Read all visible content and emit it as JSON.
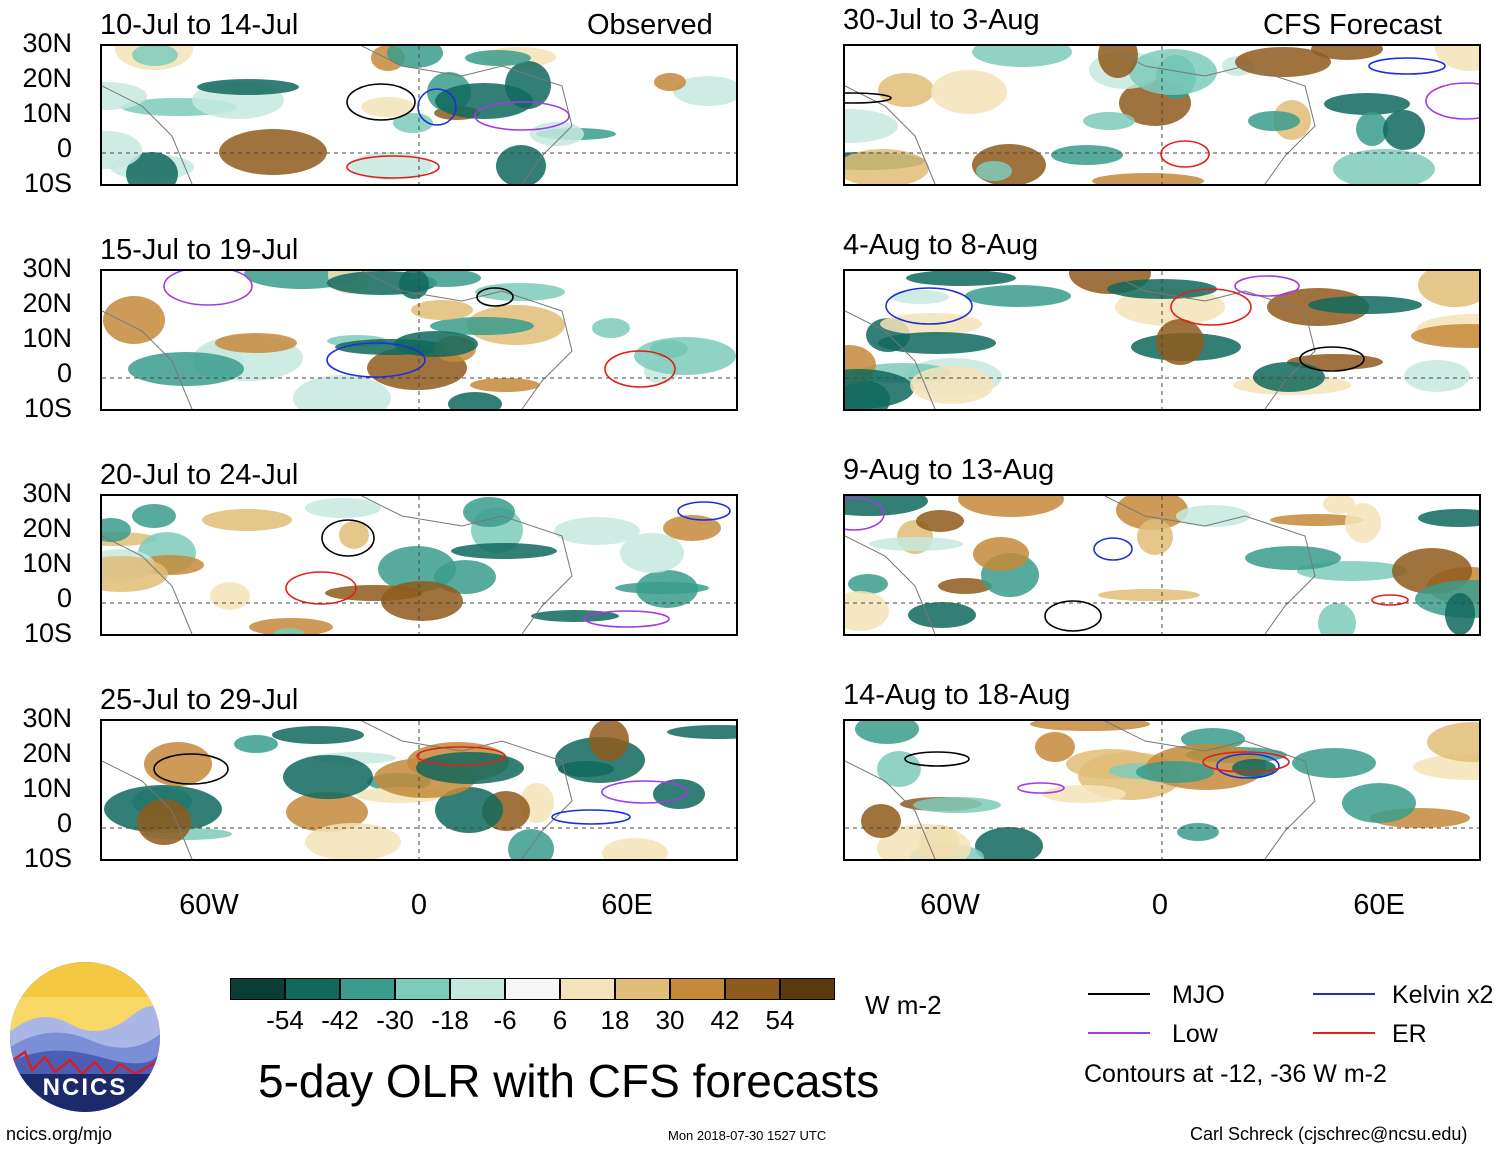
{
  "observed_label": "Observed",
  "forecast_label": "CFS Forecast",
  "panels_left": [
    {
      "period": "10-Jul to 14-Jul"
    },
    {
      "period": "15-Jul to 19-Jul"
    },
    {
      "period": "20-Jul to 24-Jul"
    },
    {
      "period": "25-Jul to 29-Jul"
    }
  ],
  "panels_right": [
    {
      "period": "30-Jul to 3-Aug"
    },
    {
      "period": "4-Aug to 8-Aug"
    },
    {
      "period": "9-Aug to 13-Aug"
    },
    {
      "period": "14-Aug to 18-Aug"
    }
  ],
  "lat_labels": [
    "30N",
    "20N",
    "10N",
    "0",
    "10S"
  ],
  "lon_labels": [
    "60W",
    "0",
    "60E"
  ],
  "colorbar": {
    "ticks": [
      "-54",
      "-42",
      "-30",
      "-18",
      "-6",
      "6",
      "18",
      "30",
      "42",
      "54"
    ],
    "colors": [
      "#0a3d35",
      "#11695d",
      "#3a9c8c",
      "#7dcbbb",
      "#c5e9df",
      "#f7f7f7",
      "#f4e3b8",
      "#e0bd78",
      "#c48a3a",
      "#8f5b1c",
      "#5a3a0e"
    ],
    "units": "W m-2"
  },
  "legend": {
    "items": [
      {
        "name": "MJO",
        "color": "#000000"
      },
      {
        "name": "Kelvin x2",
        "color": "#1f2fd6"
      },
      {
        "name": "Low",
        "color": "#a33ae6"
      },
      {
        "name": "ER",
        "color": "#e0201a"
      }
    ],
    "note": "Contours at -12, -36 W m-2"
  },
  "title": "5-day OLR with CFS forecasts",
  "footer": {
    "left": "ncics.org/mjo",
    "center": "Mon 2018-07-30 1527 UTC",
    "right": "Carl Schreck (cjschrec@ncsu.edu)"
  },
  "logo_text": "NCICS"
}
